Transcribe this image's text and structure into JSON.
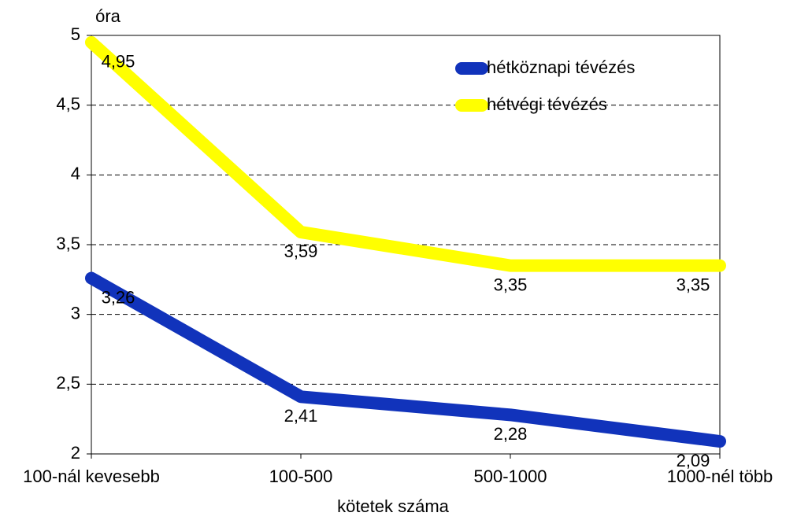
{
  "chart_data": {
    "type": "line",
    "y_axis_label": "óra",
    "x_axis_label": "kötetek száma",
    "categories": [
      "100-nál kevesebb",
      "100-500",
      "500-1000",
      "1000-nél több"
    ],
    "series": [
      {
        "name": "hétköznapi tévézés",
        "color": "#1133bb",
        "values": [
          3.26,
          2.41,
          2.28,
          2.09
        ],
        "value_labels": [
          "3,26",
          "2,41",
          "2,28",
          "2,09"
        ]
      },
      {
        "name": "hétvégi tévézés",
        "color": "#ffff00",
        "values": [
          4.95,
          3.59,
          3.35,
          3.35
        ],
        "value_labels": [
          "4,95",
          "3,59",
          "3,35",
          "3,35"
        ]
      }
    ],
    "ylim": [
      2,
      5
    ],
    "yticks": [
      2,
      {
        "value": 2.5,
        "label": "2,5"
      },
      3,
      {
        "value": 3.5,
        "label": "3,5"
      },
      4,
      {
        "value": 4.5,
        "label": "4,5"
      },
      5
    ],
    "grid": true,
    "legend": "top-right"
  }
}
